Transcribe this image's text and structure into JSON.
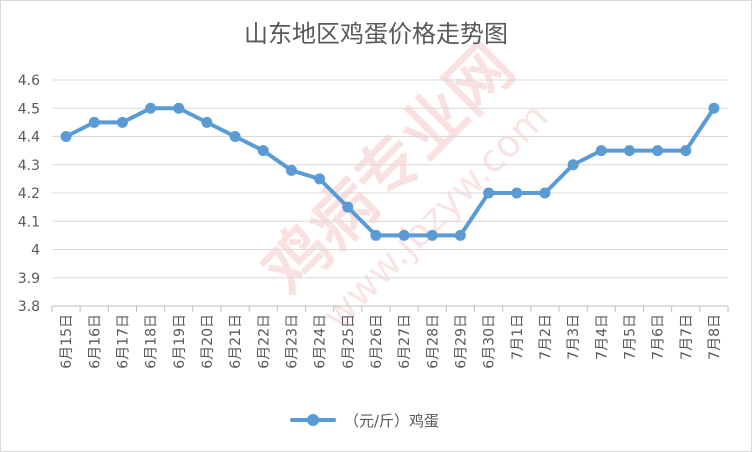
{
  "chart_data": {
    "type": "line",
    "title": "山东地区鸡蛋价格走势图",
    "categories": [
      "6月15日",
      "6月16日",
      "6月17日",
      "6月18日",
      "6月19日",
      "6月20日",
      "6月21日",
      "6月22日",
      "6月23日",
      "6月24日",
      "6月25日",
      "6月26日",
      "6月27日",
      "6月28日",
      "6月29日",
      "6月30日",
      "7月1日",
      "7月2日",
      "7月3日",
      "7月4日",
      "7月5日",
      "7月6日",
      "7月7日",
      "7月8日"
    ],
    "series": [
      {
        "name": "（元/斤）鸡蛋",
        "color": "#5b9bd5",
        "values": [
          4.4,
          4.45,
          4.45,
          4.5,
          4.5,
          4.45,
          4.4,
          4.35,
          4.28,
          4.25,
          4.15,
          4.05,
          4.05,
          4.05,
          4.05,
          4.2,
          4.2,
          4.2,
          4.3,
          4.35,
          4.35,
          4.35,
          4.35,
          4.5
        ]
      }
    ],
    "yticks": [
      "3.8",
      "3.9",
      "4",
      "4.1",
      "4.2",
      "4.3",
      "4.4",
      "4.5",
      "4.6"
    ],
    "ylim": [
      3.8,
      4.6
    ],
    "grid": true,
    "legend": "bottom"
  },
  "watermark": {
    "brand": "鸡病专业网",
    "url": "www.jbzyw.com"
  }
}
